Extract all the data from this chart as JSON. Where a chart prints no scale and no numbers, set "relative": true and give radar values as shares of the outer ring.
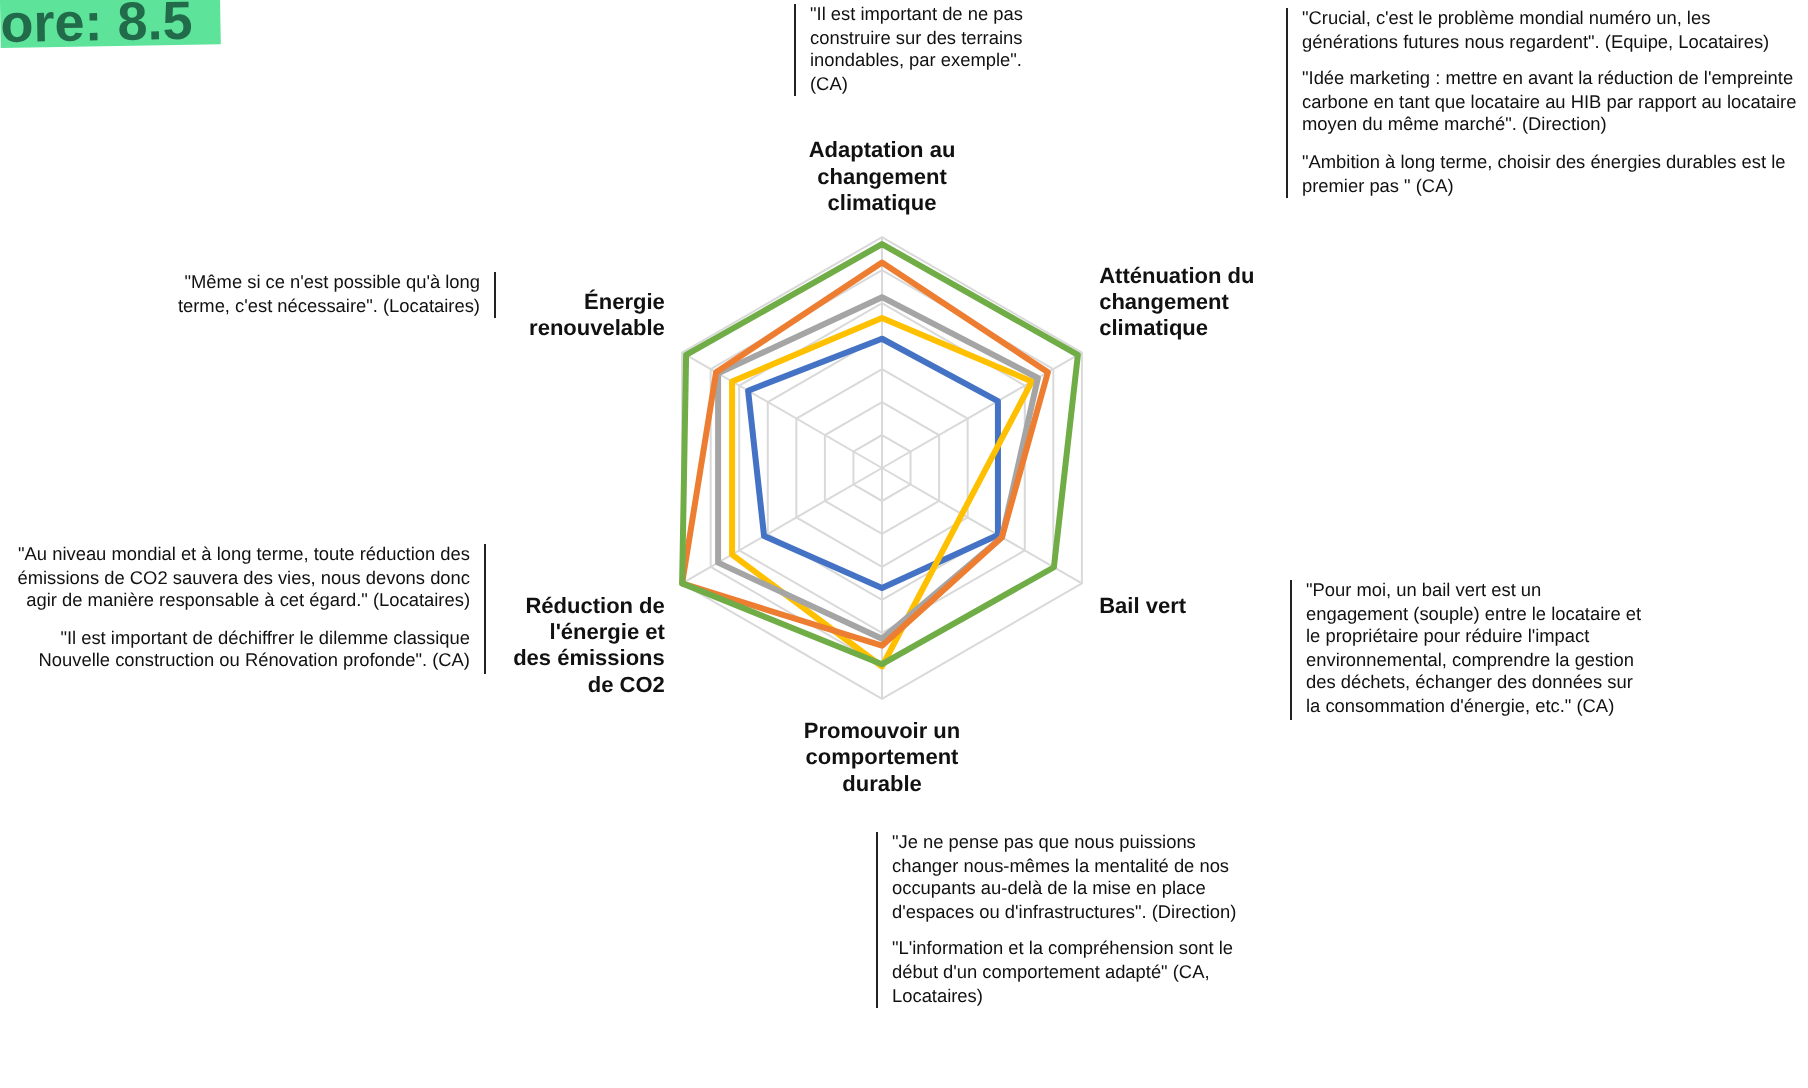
{
  "chart_data": {
    "type": "radar",
    "relative": true,
    "grid": true,
    "legend": false,
    "marker": "none",
    "categories": [
      "Adaptation au changement climatique",
      "Atténuation du changement climatique",
      "Bail vert",
      "Promouvoir un comportement durable",
      "Réduction de l'énergie et des émissions de CO2",
      "Énergie renouvelable"
    ],
    "series": [
      {
        "color": "#70ad47",
        "values": [
          0.97,
          0.98,
          0.86,
          0.85,
          1.0,
          0.98
        ]
      },
      {
        "color": "#ed7d31",
        "values": [
          0.89,
          0.83,
          0.6,
          0.77,
          1.0,
          0.83
        ]
      },
      {
        "color": "#a5a5a5",
        "values": [
          0.74,
          0.78,
          0.6,
          0.74,
          0.82,
          0.82
        ]
      },
      {
        "color": "#ffc000",
        "values": [
          0.65,
          0.75,
          0.4,
          0.86,
          0.75,
          0.75
        ]
      },
      {
        "color": "#4472c4",
        "values": [
          0.56,
          0.58,
          0.58,
          0.52,
          0.59,
          0.67
        ]
      }
    ],
    "annotations": [
      "ore: 8.5",
      "\"Il est important de ne pas construire sur des terrains inondables, par exemple\".  (CA)",
      "\"Crucial, c'est le problème mondial numéro un, les générations futures nous regardent\". (Equipe, Locataires)",
      "\"Idée marketing : mettre en avant la réduction de l'empreinte carbone en tant que locataire au HIB par rapport au locataire moyen du même marché\". (Direction)",
      "\"Ambition à long terme, choisir des énergies durables est le premier pas \" (CA)",
      "\"Même si ce n'est possible qu'à long terme, c'est nécessaire\". (Locataires)",
      "\"Au niveau mondial et à long terme, toute réduction des émissions de CO2 sauvera des vies, nous devons donc agir de manière responsable à cet égard.\" (Locataires)",
      "\"Il est important de déchiffrer le dilemme classique Nouvelle construction ou Rénovation profonde\".  (CA)",
      "\"Pour moi, un bail vert est un engagement (souple) entre le locataire et le propriétaire pour réduire l'impact environnemental, comprendre la gestion des déchets, échanger des données sur la consommation d'énergie, etc.\" (CA)",
      "\"Je ne pense pas que nous puissions changer nous-mêmes la mentalité de nos occupants au-delà de la mise en place d'espaces ou d'infrastructures\".  (Direction)",
      "\"L'information et la compréhension sont le début d'un comportement adapté\" (CA, Locataires)"
    ]
  }
}
